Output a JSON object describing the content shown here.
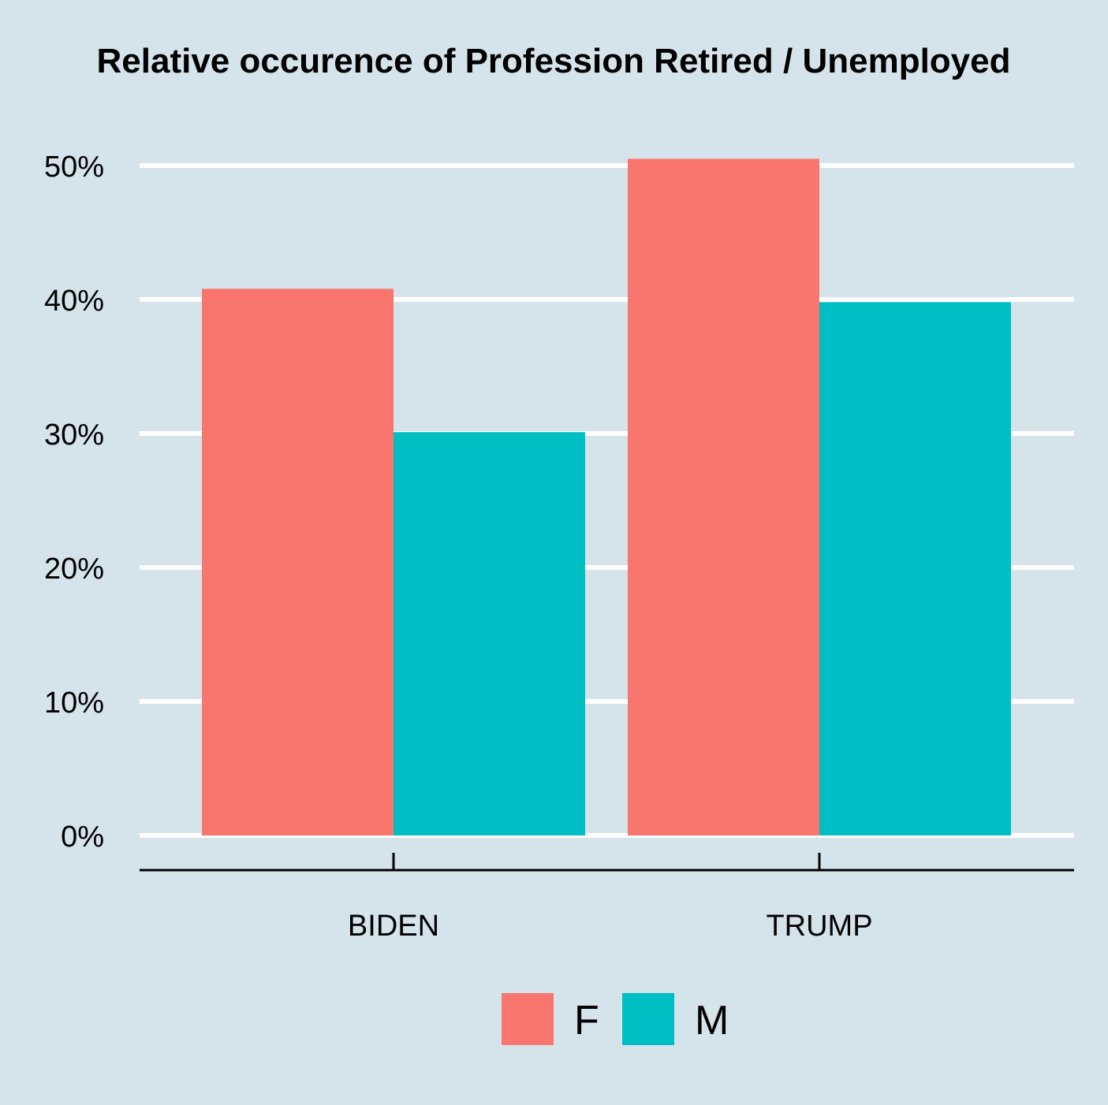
{
  "chart_data": {
    "type": "bar",
    "title": "Relative occurence of Profession Retired / Unemployed",
    "xlabel": "",
    "ylabel": "",
    "categories": [
      "BIDEN",
      "TRUMP"
    ],
    "series": [
      {
        "name": "F",
        "values": [
          40.8,
          50.5
        ],
        "color": "#f8766d"
      },
      {
        "name": "M",
        "values": [
          30.1,
          39.8
        ],
        "color": "#00bfc4"
      }
    ],
    "ylim": [
      0,
      53
    ],
    "yticks": [
      0,
      10,
      20,
      30,
      40,
      50
    ],
    "ytick_labels": [
      "0%",
      "10%",
      "20%",
      "30%",
      "40%",
      "50%"
    ],
    "grid": "horizontal",
    "legend_position": "bottom",
    "background_color": "#d5e4eb",
    "grid_color": "#ffffff"
  }
}
